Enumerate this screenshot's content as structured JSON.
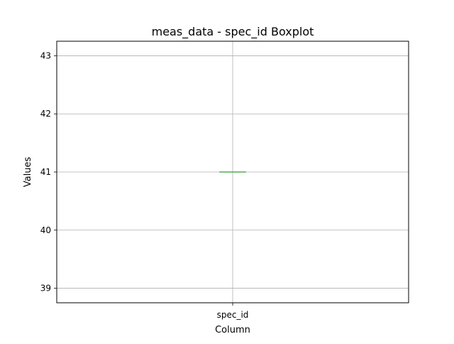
{
  "chart_data": {
    "type": "box",
    "title": "meas_data - spec_id Boxplot",
    "xlabel": "Column",
    "ylabel": "Values",
    "categories": [
      "spec_id"
    ],
    "boxes": [
      {
        "name": "spec_id",
        "min": 41,
        "q1": 41,
        "median": 41,
        "q3": 41,
        "max": 41
      }
    ],
    "ylim": [
      38.75,
      43.25
    ],
    "yticks": [
      39,
      40,
      41,
      42,
      43
    ],
    "grid": true,
    "colors": {
      "box": "#1f77b4",
      "median": "#2ca02c",
      "grid": "#b0b0b0",
      "axes": "#000000"
    }
  }
}
